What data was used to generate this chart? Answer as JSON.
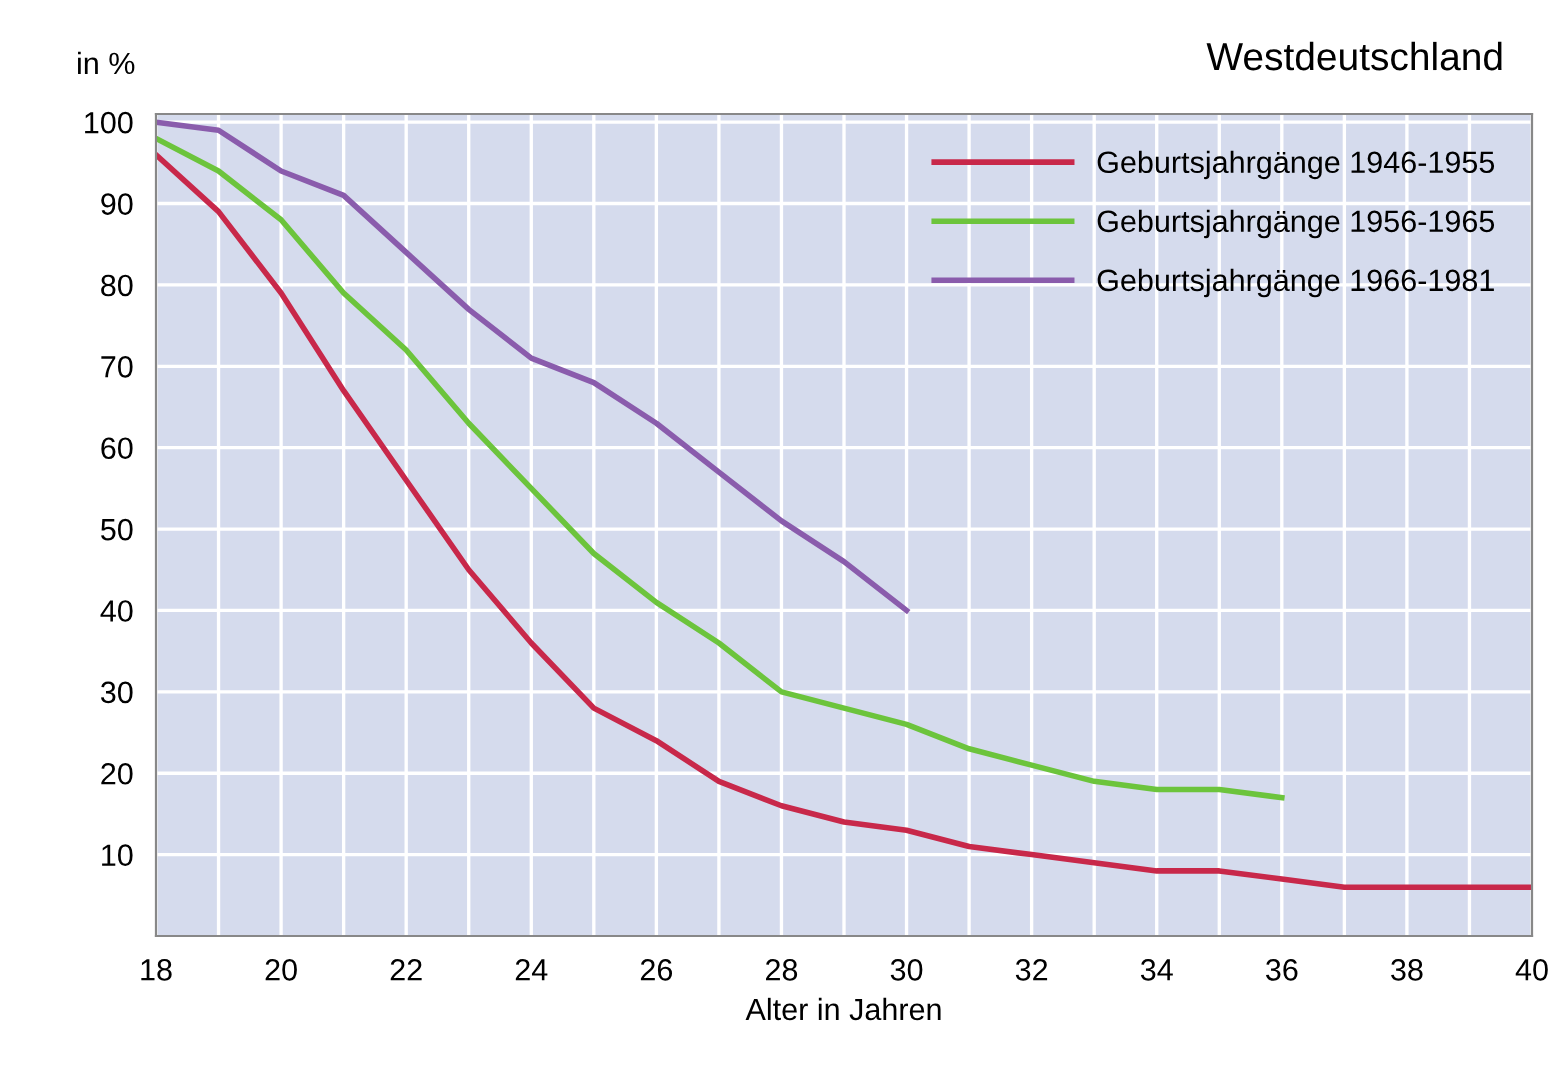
{
  "chart_data": {
    "type": "line",
    "title": "Westdeutschland",
    "ylabel": "in %",
    "xlabel": "Alter in Jahren",
    "series": [
      {
        "name": "Geburtsjahrgänge 1946-1955",
        "color": "#c8284a",
        "x": [
          18,
          19,
          20,
          21,
          22,
          23,
          24,
          25,
          26,
          27,
          28,
          29,
          30,
          31,
          32,
          33,
          34,
          35,
          36,
          37,
          38,
          39,
          40
        ],
        "values": [
          96,
          89,
          79,
          67,
          56,
          45,
          36,
          28,
          24,
          19,
          16,
          14,
          13,
          11,
          10,
          9,
          8,
          8,
          7,
          6,
          6,
          6,
          6
        ]
      },
      {
        "name": "Geburtsjahrgänge 1956-1965",
        "color": "#6cc43c",
        "x": [
          18,
          19,
          20,
          21,
          22,
          23,
          24,
          25,
          26,
          27,
          28,
          29,
          30,
          31,
          32,
          33,
          34,
          35,
          36
        ],
        "values": [
          98,
          94,
          88,
          79,
          72,
          63,
          55,
          47,
          41,
          36,
          30,
          28,
          26,
          23,
          21,
          19,
          18,
          18,
          17
        ]
      },
      {
        "name": "Geburtsjahrgänge 1966-1981",
        "color": "#8a5cac",
        "x": [
          18,
          19,
          20,
          21,
          22,
          23,
          24,
          25,
          26,
          27,
          28,
          29,
          30
        ],
        "values": [
          100,
          99,
          94,
          91,
          84,
          77,
          71,
          68,
          63,
          57,
          51,
          46,
          40
        ]
      }
    ],
    "xlim": [
      18,
      40
    ],
    "ylim": [
      0,
      101
    ],
    "xticks": [
      18,
      {
        "value": 19,
        "label": null
      },
      20,
      {
        "value": 21,
        "label": null
      },
      22,
      {
        "value": 23,
        "label": null
      },
      24,
      {
        "value": 25,
        "label": null
      },
      26,
      {
        "value": 27,
        "label": null
      },
      28,
      {
        "value": 29,
        "label": null
      },
      30,
      {
        "value": 31,
        "label": null
      },
      32,
      {
        "value": 33,
        "label": null
      },
      34,
      {
        "value": 35,
        "label": null
      },
      36,
      {
        "value": 37,
        "label": null
      },
      38,
      {
        "value": 39,
        "label": null
      },
      40
    ],
    "yticks": [
      10,
      20,
      30,
      40,
      50,
      60,
      70,
      80,
      90,
      100
    ],
    "grid": true,
    "legend": "top right",
    "marker": "none",
    "line_style": "solid"
  }
}
